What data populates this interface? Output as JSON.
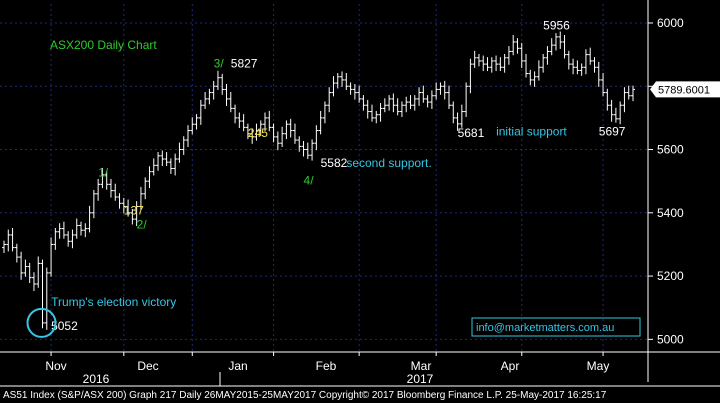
{
  "colors": {
    "background": "#000000",
    "plot_background": "#000000",
    "bars": "#ffffff",
    "axis_text": "#ffffff",
    "grid": "#1c2a7a",
    "wave_label": "#2ecc2e",
    "pullback_label": "#f1e24a",
    "cyan": "#35c6e6",
    "price_box": "#ffffff",
    "price_text": "#000000"
  },
  "chart_data": {
    "type": "ohlc",
    "title": "ASX200 Daily Chart",
    "last_price": "5789.6001",
    "y_ticks": [
      5000,
      5200,
      5400,
      5600,
      5800,
      6000
    ],
    "ylim": [
      4960,
      6060
    ],
    "grid": "dashed horizontal and vertical",
    "month_labels": [
      "Nov",
      "Dec",
      "Jan",
      "Feb",
      "Mar",
      "Apr",
      "May"
    ],
    "year_labels": [
      "2016",
      "2017"
    ],
    "closes": [
      5300,
      5330,
      5290,
      5260,
      5210,
      5230,
      5195,
      5175,
      5240,
      5052,
      5210,
      5300,
      5340,
      5350,
      5330,
      5310,
      5330,
      5360,
      5345,
      5350,
      5400,
      5460,
      5490,
      5520,
      5490,
      5470,
      5450,
      5430,
      5420,
      5400,
      5380,
      5420,
      5460,
      5500,
      5530,
      5550,
      5580,
      5570,
      5560,
      5540,
      5570,
      5600,
      5630,
      5660,
      5680,
      5700,
      5740,
      5760,
      5780,
      5800,
      5827,
      5790,
      5760,
      5730,
      5700,
      5690,
      5670,
      5650,
      5640,
      5660,
      5680,
      5700,
      5670,
      5640,
      5620,
      5650,
      5680,
      5660,
      5630,
      5610,
      5600,
      5582,
      5620,
      5660,
      5700,
      5740,
      5780,
      5810,
      5830,
      5820,
      5800,
      5790,
      5780,
      5760,
      5740,
      5720,
      5700,
      5710,
      5730,
      5740,
      5760,
      5740,
      5720,
      5740,
      5750,
      5740,
      5760,
      5780,
      5760,
      5750,
      5770,
      5790,
      5800,
      5780,
      5740,
      5700,
      5681,
      5720,
      5800,
      5870,
      5890,
      5880,
      5870,
      5860,
      5880,
      5870,
      5860,
      5890,
      5910,
      5940,
      5920,
      5880,
      5840,
      5820,
      5830,
      5860,
      5890,
      5910,
      5930,
      5956,
      5940,
      5900,
      5870,
      5860,
      5850,
      5860,
      5900,
      5880,
      5860,
      5820,
      5780,
      5740,
      5710,
      5697,
      5740,
      5780,
      5770,
      5790
    ],
    "annotations": [
      {
        "text": "1/",
        "kind": "wave",
        "date_index": 22,
        "price": 5515
      },
      {
        "text": "137",
        "kind": "pullback",
        "date_index": 28,
        "price": 5395
      },
      {
        "text": "2/",
        "kind": "wave",
        "date_index": 31,
        "price": 5350
      },
      {
        "text": "3/",
        "kind": "wave",
        "date_index": 49,
        "price": 5860
      },
      {
        "text": "5827",
        "kind": "value",
        "date_index": 53,
        "price": 5860
      },
      {
        "text": "245",
        "kind": "pullback",
        "date_index": 57,
        "price": 5640
      },
      {
        "text": "4/",
        "kind": "wave",
        "date_index": 70,
        "price": 5490
      },
      {
        "text": "5582",
        "kind": "value",
        "date_index": 74,
        "price": 5545
      },
      {
        "text": "second support.",
        "kind": "cyan",
        "date_index": 80,
        "price": 5545
      },
      {
        "text": "5681",
        "kind": "value",
        "date_index": 106,
        "price": 5640
      },
      {
        "text": "initial support",
        "kind": "cyan",
        "date_index": 115,
        "price": 5645
      },
      {
        "text": "5956",
        "kind": "value",
        "date_index": 126,
        "price": 5980
      },
      {
        "text": "5697",
        "kind": "value",
        "date_index": 139,
        "price": 5645
      },
      {
        "text": "Trump's election victory",
        "kind": "cyan",
        "date_index": 11,
        "price": 5105
      },
      {
        "text": "5052",
        "kind": "value",
        "date_index": 11,
        "price": 5030
      }
    ],
    "election_circle": {
      "date_index": 9,
      "price": 5052
    }
  },
  "watermark": "info@marketmatters.com.au",
  "footer": "AS51 Index (S&P/ASX 200) Graph 217  Daily 26MAY2015-25MAY2017    Copyright© 2017 Bloomberg Finance L.P.    25-May-2017 16:25:17"
}
